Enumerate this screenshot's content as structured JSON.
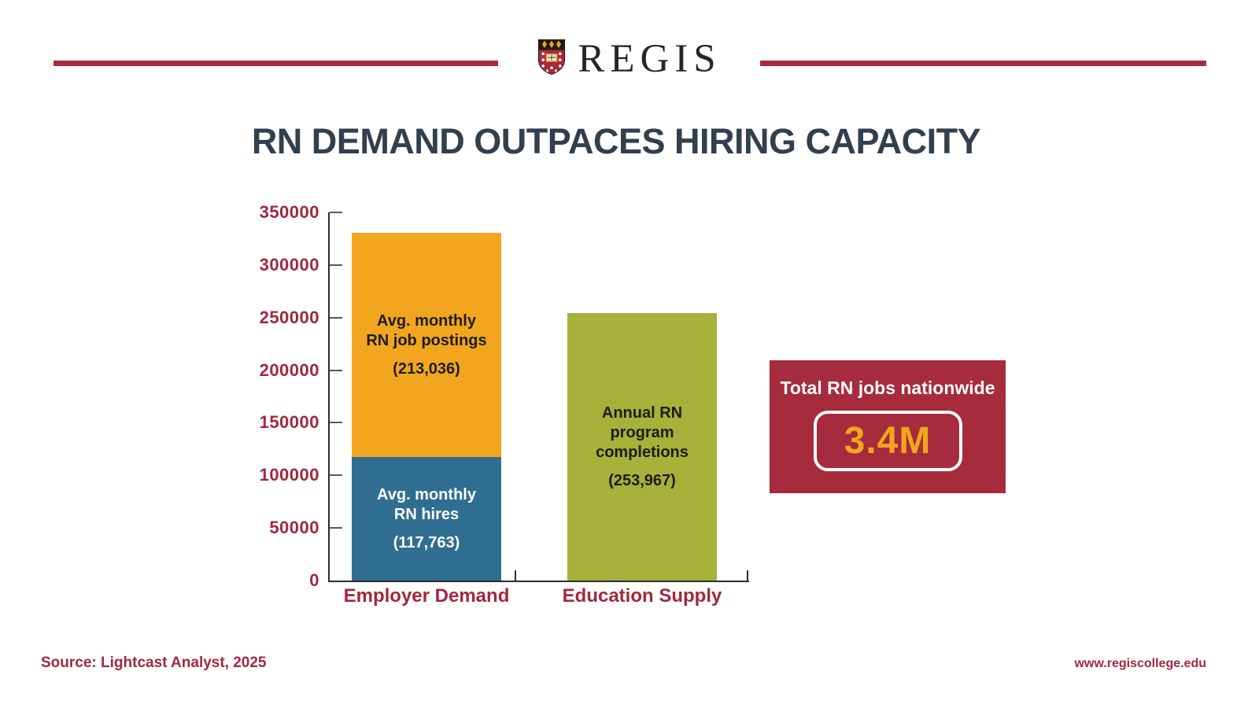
{
  "header": {
    "brand": "REGIS"
  },
  "title": "RN DEMAND OUTPACES HIRING CAPACITY",
  "chart_data": {
    "type": "bar",
    "stacked": true,
    "title": "RN DEMAND OUTPACES HIRING CAPACITY",
    "xlabel": "",
    "ylabel": "",
    "ylim": [
      0,
      350000
    ],
    "yticks": [
      0,
      50000,
      100000,
      150000,
      200000,
      250000,
      300000,
      350000
    ],
    "grid": false,
    "legend": false,
    "categories": [
      "Employer Demand",
      "Education Supply"
    ],
    "series": [
      {
        "name": "Avg. monthly RN hires",
        "values": [
          117763,
          0
        ]
      },
      {
        "name": "Avg. monthly RN job postings",
        "values": [
          213036,
          0
        ]
      },
      {
        "name": "Annual RN program completions",
        "values": [
          0,
          253967
        ]
      }
    ],
    "bars": [
      {
        "category": "Employer Demand",
        "segments": [
          {
            "label_lines": [
              "Avg. monthly",
              "RN hires"
            ],
            "value": 117763,
            "value_label": "(117,763)",
            "color": "#2f6e90",
            "text_color": "#ffffff"
          },
          {
            "label_lines": [
              "Avg. monthly",
              "RN job postings"
            ],
            "value": 213036,
            "value_label": "(213,036)",
            "color": "#f2a51e",
            "text_color": "#1d1d1b"
          }
        ]
      },
      {
        "category": "Education Supply",
        "segments": [
          {
            "label_lines": [
              "Annual RN",
              "program completions"
            ],
            "value": 253967,
            "value_label": "(253,967)",
            "color": "#a5b138",
            "text_color": "#1d1d1b"
          }
        ]
      }
    ]
  },
  "callout": {
    "heading": "Total RN jobs nationwide",
    "value": "3.4M"
  },
  "footer": {
    "source": "Source: Lightcast Analyst, 2025",
    "website": "www.regiscollege.edu"
  },
  "colors": {
    "crimson": "#a62b3d",
    "crimson_text": "#a12740",
    "orange": "#f2a51e",
    "blue": "#2f6e90",
    "green": "#a5b138",
    "title_navy": "#32404d",
    "axis": "#2e2d2c"
  }
}
